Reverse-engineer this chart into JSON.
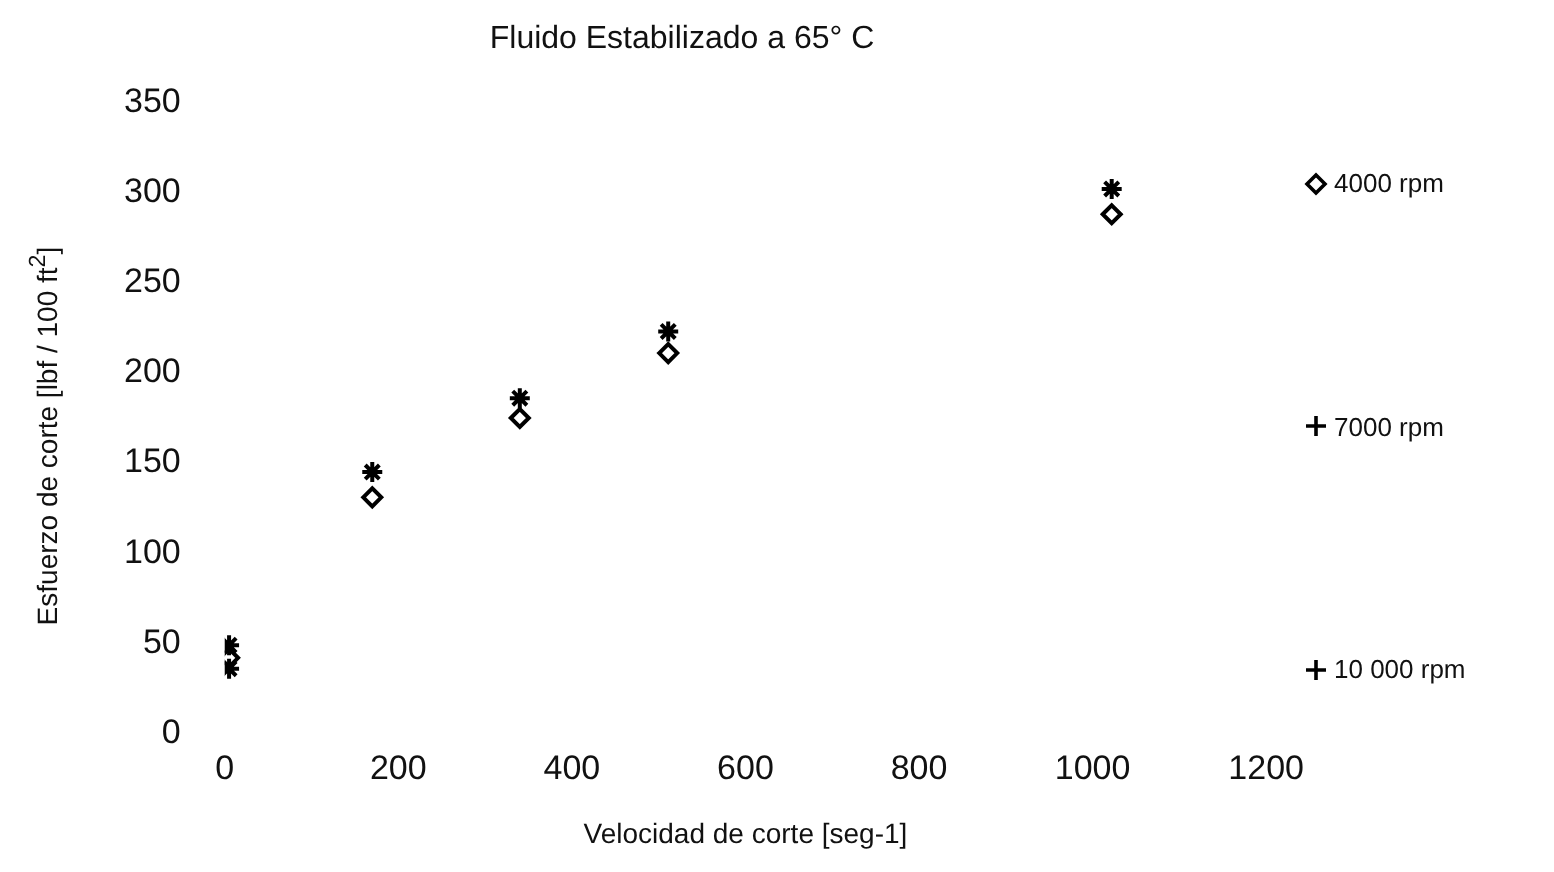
{
  "chart_data": {
    "type": "scatter",
    "title": "Fluido Estabilizado a 65° C",
    "xlabel": "Velocidad de corte [seg-1]",
    "ylabel": "Esfuerzo de corte [lbf / 100 ft$^{2}$]",
    "x": [
      5,
      170,
      340,
      511,
      1022
    ],
    "xlim": [
      0,
      1200
    ],
    "xticks": [
      0,
      200,
      400,
      600,
      800,
      1000,
      1200
    ],
    "ylim": [
      0,
      350
    ],
    "yticks": [
      0,
      50,
      100,
      150,
      200,
      250,
      300,
      350
    ],
    "grid": false,
    "legend": "right",
    "series": [
      {
        "name": "4000 rpm",
        "color": "#000000",
        "marker": "diamond",
        "values": [
          42,
          131,
          175,
          211,
          288
        ]
      },
      {
        "name": "7000 rpm",
        "color": "#000000",
        "marker": "cross",
        "values": [
          36,
          null,
          null,
          null,
          null
        ]
      },
      {
        "name": "10 000 rpm",
        "color": "#000000",
        "marker": "cross",
        "values": [
          49,
          145,
          186,
          223,
          302
        ]
      }
    ]
  }
}
